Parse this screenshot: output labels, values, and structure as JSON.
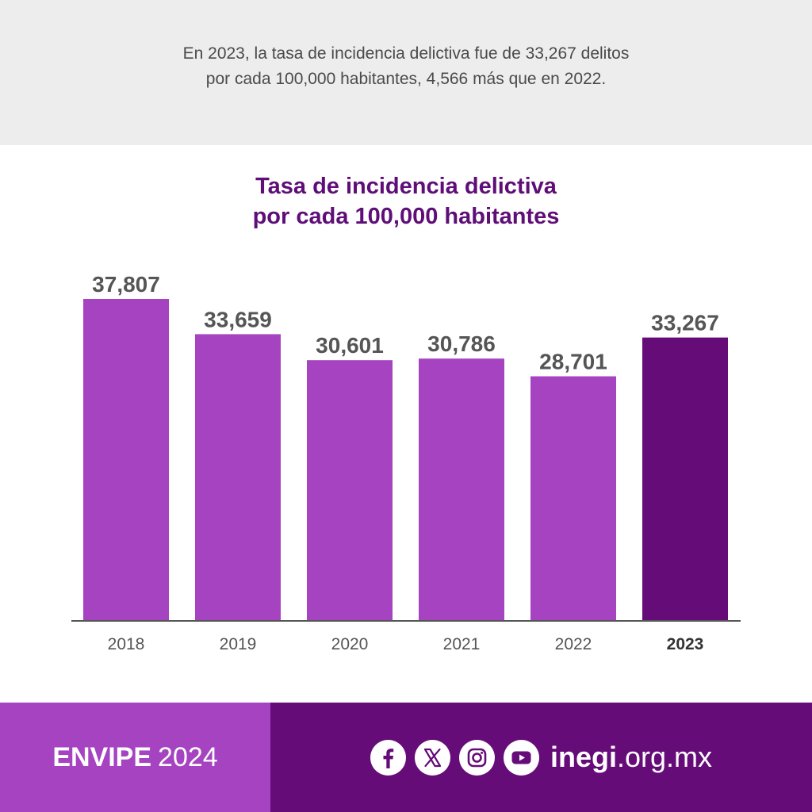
{
  "header": {
    "line1": "En 2023, la tasa de incidencia delictiva fue de 33,267 delitos",
    "line2": "por cada 100,000 habitantes, 4,566 más que en 2022."
  },
  "chart_data": {
    "type": "bar",
    "title_line1": "Tasa de incidencia delictiva",
    "title_line2": "por cada 100,000 habitantes",
    "categories": [
      "2018",
      "2019",
      "2020",
      "2021",
      "2022",
      "2023"
    ],
    "values": [
      37807,
      33659,
      30601,
      30786,
      28701,
      33267
    ],
    "value_labels": [
      "37,807",
      "33,659",
      "30,601",
      "30,786",
      "28,701",
      "33,267"
    ],
    "highlight_category": "2023",
    "colors": {
      "bar": "#a543c1",
      "highlight": "#650c78",
      "label": "#555555",
      "axis": "#555555"
    },
    "ylim": [
      0,
      37807
    ],
    "grid": false,
    "legend": "none"
  },
  "footer": {
    "brand_bold": "ENVIPE",
    "brand_year": "2024",
    "social_icons": [
      "facebook-icon",
      "x-icon",
      "instagram-icon",
      "youtube-icon"
    ],
    "site_bold": "inegi",
    "site_rest": ".org.mx",
    "colors": {
      "left": "#a543c1",
      "right": "#650c78"
    }
  }
}
